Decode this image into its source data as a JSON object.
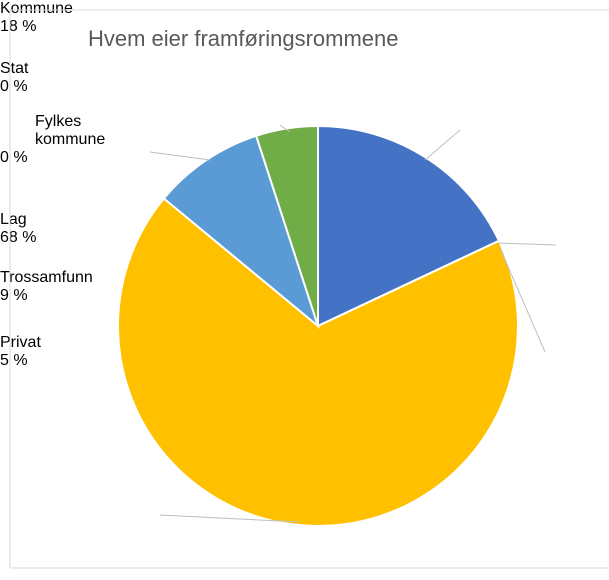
{
  "chart_data": {
    "type": "pie",
    "title": "Hvem eier framføringsrommene",
    "categories": [
      "Kommune",
      "Stat",
      "Fylkes kommune",
      "Lag",
      "Trossamfunn",
      "Privat"
    ],
    "values": [
      18,
      0,
      0,
      68,
      9,
      5
    ],
    "value_labels": [
      "18 %",
      "0 %",
      "0 %",
      "68 %",
      "9 %",
      "5 %"
    ],
    "colors": [
      "#4472c4",
      "#ed7d31",
      "#a5a5a5",
      "#ffc000",
      "#5b9bd5",
      "#70ad47"
    ]
  }
}
